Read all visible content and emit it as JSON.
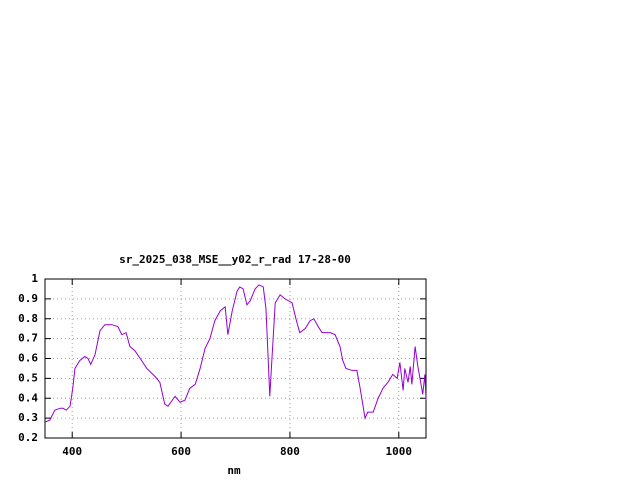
{
  "chart_data": {
    "type": "line",
    "title": "sr_2025_038_MSE__y02_r_rad 17-28-00",
    "x_label": "nm",
    "x": [
      350,
      359,
      368,
      378,
      383,
      389,
      396,
      401,
      405,
      414,
      423,
      429,
      434,
      442,
      451,
      460,
      473,
      484,
      491,
      499,
      506,
      515,
      525,
      537,
      552,
      561,
      570,
      576,
      589,
      598,
      607,
      616,
      626,
      635,
      644,
      653,
      662,
      672,
      681,
      686,
      694,
      703,
      708,
      714,
      721,
      727,
      736,
      743,
      751,
      756,
      760,
      763,
      767,
      773,
      782,
      791,
      804,
      811,
      818,
      828,
      837,
      844,
      852,
      859,
      874,
      883,
      892,
      897,
      903,
      914,
      923,
      929,
      938,
      943,
      953,
      962,
      971,
      980,
      989,
      997,
      1002,
      1008,
      1011,
      1017,
      1021,
      1024,
      1030,
      1035,
      1039,
      1044,
      1048,
      1050
    ],
    "series": [
      {
        "color": "#9400d3",
        "values": [
          0.28,
          0.29,
          0.34,
          0.35,
          0.35,
          0.34,
          0.36,
          0.45,
          0.55,
          0.59,
          0.61,
          0.6,
          0.57,
          0.62,
          0.74,
          0.77,
          0.77,
          0.76,
          0.72,
          0.73,
          0.66,
          0.64,
          0.6,
          0.55,
          0.51,
          0.48,
          0.37,
          0.36,
          0.41,
          0.38,
          0.39,
          0.45,
          0.47,
          0.55,
          0.65,
          0.7,
          0.79,
          0.84,
          0.86,
          0.72,
          0.84,
          0.94,
          0.96,
          0.95,
          0.87,
          0.89,
          0.95,
          0.97,
          0.96,
          0.85,
          0.6,
          0.41,
          0.6,
          0.88,
          0.92,
          0.9,
          0.88,
          0.8,
          0.73,
          0.75,
          0.79,
          0.8,
          0.76,
          0.73,
          0.73,
          0.72,
          0.66,
          0.59,
          0.55,
          0.54,
          0.54,
          0.45,
          0.3,
          0.33,
          0.33,
          0.4,
          0.45,
          0.48,
          0.52,
          0.5,
          0.58,
          0.44,
          0.55,
          0.48,
          0.56,
          0.47,
          0.66,
          0.56,
          0.5,
          0.42,
          0.52,
          0.39
        ]
      }
    ],
    "xlim": [
      350,
      1050
    ],
    "xticks": [
      400,
      600,
      800,
      1000
    ],
    "ylim": [
      0.2,
      1
    ],
    "yticks": [
      0.2,
      0.3,
      0.4,
      0.5,
      0.6,
      0.7,
      0.8,
      0.9,
      1
    ],
    "grid": true
  }
}
